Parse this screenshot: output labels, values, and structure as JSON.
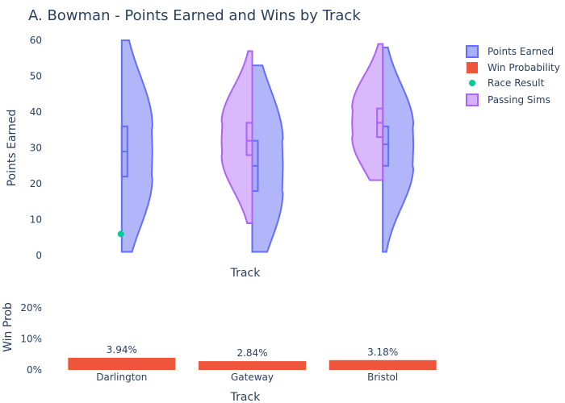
{
  "chart_data": [
    {
      "type": "violin",
      "title": "A. Bowman - Points Earned and Wins by Track",
      "xlabel": "Track",
      "ylabel": "Points Earned",
      "categories": [
        "Darlington",
        "Gateway",
        "Bristol"
      ],
      "ylim": [
        0,
        60
      ],
      "yticks": [
        0,
        10,
        20,
        30,
        40,
        50,
        60
      ],
      "grid": false,
      "legend_position": "top-right",
      "series": [
        {
          "name": "Points Earned",
          "side": "positive",
          "color": "#636efa",
          "fill": "#a8aefb",
          "stats": [
            {
              "category": "Darlington",
              "min": 1,
              "q1": 22,
              "median": 29,
              "q3": 36,
              "max": 60
            },
            {
              "category": "Gateway",
              "min": 1,
              "q1": 18,
              "median": 25,
              "q3": 32,
              "max": 53
            },
            {
              "category": "Bristol",
              "min": 1,
              "q1": 25,
              "median": 31,
              "q3": 36,
              "max": 58
            }
          ]
        },
        {
          "name": "Passing Sims",
          "side": "negative",
          "color": "#ab63fa",
          "fill": "#d5b1fc",
          "stats": [
            {
              "category": "Gateway",
              "min": 9,
              "q1": 28,
              "median": 32,
              "q3": 37,
              "max": 57
            },
            {
              "category": "Bristol",
              "min": 21,
              "q1": 33,
              "median": 37,
              "q3": 41,
              "max": 59
            }
          ]
        },
        {
          "name": "Race Result",
          "type": "scatter",
          "color": "#00cc96",
          "points": [
            {
              "category": "Darlington",
              "y": 6
            }
          ]
        }
      ]
    },
    {
      "type": "bar",
      "xlabel": "Track",
      "ylabel": "Win Prob",
      "categories": [
        "Darlington",
        "Gateway",
        "Bristol"
      ],
      "ylim": [
        0,
        0.25
      ],
      "yticks": [
        0,
        0.1,
        0.2
      ],
      "ytick_labels": [
        "0%",
        "10%",
        "20%"
      ],
      "series": [
        {
          "name": "Win Probability",
          "color": "#ef553b",
          "values": [
            0.0394,
            0.0284,
            0.0318
          ],
          "labels": [
            "3.94%",
            "2.84%",
            "3.18%"
          ]
        }
      ]
    }
  ]
}
